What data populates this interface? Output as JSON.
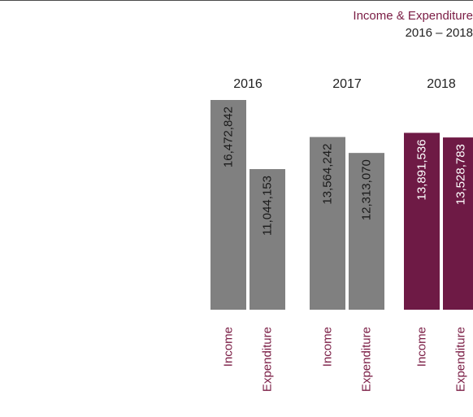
{
  "title": "Income & Expenditure",
  "subtitle": "2016 – 2018",
  "colors": {
    "past": "#808080",
    "current": "#6e1a45",
    "label": "#7a1c44",
    "year": "#222222",
    "value_text": "#ffffff",
    "value_text_dark": "#1a1a1a"
  },
  "chart_data": {
    "type": "bar",
    "title": "Income & Expenditure",
    "subtitle": "2016 – 2018",
    "categories": [
      "2016",
      "2017",
      "2018"
    ],
    "series": [
      {
        "name": "Income",
        "values": [
          16472842,
          13564242,
          13891536
        ]
      },
      {
        "name": "Expenditure",
        "values": [
          11044153,
          12313070,
          13528783
        ]
      }
    ],
    "value_labels": [
      [
        "16,472,842",
        "11,044,153"
      ],
      [
        "13,564,242",
        "12,313,070"
      ],
      [
        "13,891,536",
        "13,528,783"
      ]
    ],
    "highlight_category": "2018",
    "ylim": [
      0,
      16472842
    ],
    "grid": false,
    "legend": "none"
  }
}
